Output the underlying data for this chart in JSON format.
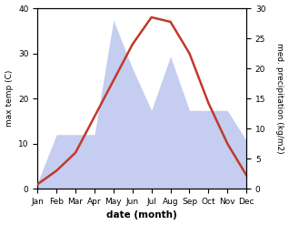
{
  "months": [
    "Jan",
    "Feb",
    "Mar",
    "Apr",
    "May",
    "Jun",
    "Jul",
    "Aug",
    "Sep",
    "Oct",
    "Nov",
    "Dec"
  ],
  "temp": [
    1,
    4,
    8,
    16,
    24,
    32,
    38,
    37,
    30,
    19,
    10,
    3
  ],
  "precip": [
    1,
    9,
    9,
    9,
    28,
    20,
    13,
    22,
    13,
    13,
    13,
    8
  ],
  "temp_color": "#c0392b",
  "precip_fill_color": "#c5cdf0",
  "title": "",
  "xlabel": "date (month)",
  "ylabel_left": "max temp (C)",
  "ylabel_right": "med. precipitation (kg/m2)",
  "ylim_left": [
    0,
    40
  ],
  "ylim_right": [
    0,
    30
  ],
  "yticks_left": [
    0,
    10,
    20,
    30,
    40
  ],
  "yticks_right": [
    0,
    5,
    10,
    15,
    20,
    25,
    30
  ],
  "background_color": "#ffffff",
  "grid_color": "#d8d8d8"
}
